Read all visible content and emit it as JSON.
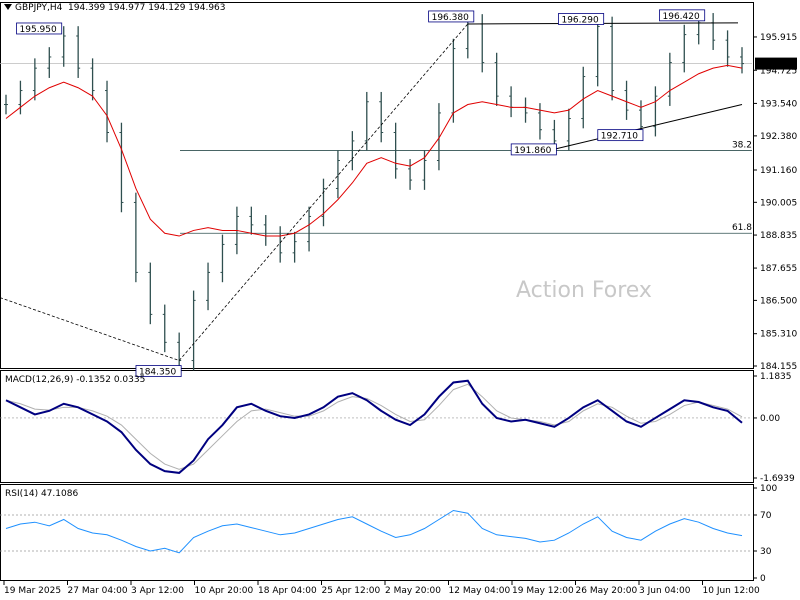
{
  "header": {
    "symbol": "GBPJPY,H4",
    "ohlc": "194.399 194.977 194.129 194.963"
  },
  "watermark": "Action Forex",
  "colors": {
    "bars": "#2f4f4f",
    "ma": "#e00000",
    "macd": "#000080",
    "signal": "#b0b0b0",
    "rsi": "#1e90ff",
    "label_border": "#000080",
    "price_box": "#000000"
  },
  "chart_data": [
    {
      "type": "line",
      "panel": "price",
      "title": "GBPJPY,H4",
      "ylim": [
        184.155,
        196.95
      ],
      "y_ticks": [
        "195.915",
        "194.725",
        "193.540",
        "192.380",
        "191.160",
        "190.005",
        "188.835",
        "187.655",
        "186.500",
        "185.310",
        "184.155"
      ],
      "current_price": "194.963",
      "x_ticks": [
        "19 Mar 2025",
        "27 Mar 04:00",
        "3 Apr 12:00",
        "10 Apr 20:00",
        "18 Apr 04:00",
        "25 Apr 12:00",
        "2 May 20:00",
        "12 May 04:00",
        "19 May 12:00",
        "26 May 20:00",
        "3 Jun 04:00",
        "10 Jun 12:00"
      ],
      "series": [
        {
          "values": [
            193.5,
            194.0,
            194.8,
            195.2,
            195.95,
            194.8,
            194.0,
            192.5,
            190.0,
            187.5,
            186.0,
            185.0,
            184.35,
            186.5,
            187.5,
            188.5,
            189.5,
            189.2,
            188.8,
            188.2,
            188.6,
            189.5,
            190.5,
            191.5,
            192.2,
            193.6,
            192.5,
            191.2,
            190.8,
            191.5,
            193.2,
            195.5,
            196.38,
            195.0,
            193.8,
            193.4,
            193.2,
            192.6,
            192.2,
            193.0,
            194.5,
            196.29,
            194.0,
            193.3,
            192.71,
            193.8,
            195.0,
            196.0,
            196.42,
            195.8,
            195.2,
            194.963
          ]
        },
        {
          "values": [
            193.0,
            193.4,
            193.8,
            194.1,
            194.3,
            194.1,
            193.8,
            193.1,
            191.9,
            190.5,
            189.4,
            188.9,
            188.8,
            189.0,
            189.1,
            189.0,
            189.0,
            188.9,
            188.8,
            188.8,
            188.9,
            189.2,
            189.6,
            190.1,
            190.7,
            191.4,
            191.6,
            191.4,
            191.3,
            191.6,
            192.3,
            193.2,
            193.5,
            193.6,
            193.5,
            193.4,
            193.4,
            193.3,
            193.2,
            193.3,
            193.7,
            194.0,
            193.8,
            193.6,
            193.4,
            193.6,
            194.0,
            194.3,
            194.6,
            194.8,
            194.9,
            194.8
          ]
        }
      ],
      "annotations": [
        "195.950",
        "184.350",
        "196.380",
        "191.860",
        "196.290",
        "192.710",
        "196.420"
      ],
      "fib_levels": [
        "38.2",
        "61.8"
      ],
      "fib_values": [
        191.86,
        188.9
      ]
    },
    {
      "type": "line",
      "panel": "macd",
      "title": "MACD(12,26,9) -0.1352 0.0335",
      "ylim": [
        -1.6939,
        1.1835
      ],
      "y_ticks": [
        "1.1835",
        "0.00",
        "-1.6939"
      ],
      "series": [
        {
          "values": [
            0.5,
            0.3,
            0.1,
            0.2,
            0.4,
            0.3,
            0.1,
            -0.1,
            -0.4,
            -0.9,
            -1.3,
            -1.5,
            -1.55,
            -1.2,
            -0.6,
            -0.2,
            0.3,
            0.4,
            0.2,
            0.05,
            0.0,
            0.1,
            0.3,
            0.6,
            0.7,
            0.5,
            0.2,
            -0.05,
            -0.2,
            0.1,
            0.6,
            1.0,
            1.05,
            0.4,
            0.0,
            -0.1,
            -0.05,
            -0.15,
            -0.25,
            0.0,
            0.3,
            0.5,
            0.2,
            -0.1,
            -0.25,
            0.0,
            0.25,
            0.5,
            0.45,
            0.3,
            0.2,
            -0.1352
          ]
        },
        {
          "values": [
            0.5,
            0.4,
            0.25,
            0.22,
            0.3,
            0.3,
            0.2,
            0.05,
            -0.2,
            -0.6,
            -1.0,
            -1.3,
            -1.45,
            -1.3,
            -0.9,
            -0.5,
            -0.1,
            0.2,
            0.25,
            0.15,
            0.05,
            0.05,
            0.2,
            0.45,
            0.6,
            0.55,
            0.35,
            0.1,
            -0.1,
            -0.05,
            0.35,
            0.8,
            0.95,
            0.6,
            0.2,
            0.0,
            -0.05,
            -0.1,
            -0.2,
            -0.1,
            0.2,
            0.4,
            0.3,
            0.05,
            -0.15,
            -0.1,
            0.1,
            0.35,
            0.45,
            0.35,
            0.25,
            0.0335
          ]
        }
      ]
    },
    {
      "type": "line",
      "panel": "rsi",
      "title": "RSI(14) 47.1086",
      "ylim": [
        0,
        100
      ],
      "y_ticks": [
        "100",
        "70",
        "30",
        "0"
      ],
      "series": [
        {
          "values": [
            55,
            60,
            62,
            58,
            65,
            55,
            50,
            48,
            42,
            35,
            30,
            33,
            28,
            45,
            52,
            58,
            60,
            56,
            52,
            48,
            50,
            55,
            60,
            65,
            68,
            60,
            52,
            45,
            48,
            55,
            65,
            75,
            72,
            55,
            48,
            46,
            44,
            40,
            42,
            50,
            60,
            68,
            52,
            45,
            42,
            52,
            60,
            66,
            62,
            55,
            50,
            47.1086
          ]
        }
      ]
    }
  ]
}
